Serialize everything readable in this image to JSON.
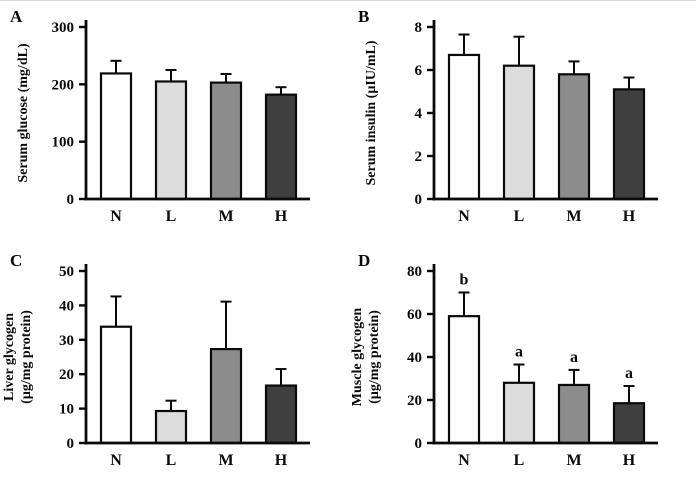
{
  "figure": {
    "description": "Four-panel bar chart figure, panels A-D, groups N L M H",
    "background": "#ffffff"
  },
  "colors": {
    "bar_fills": [
      "#ffffff",
      "#dcdcdc",
      "#8c8c8c",
      "#3f3f3f"
    ],
    "bar_stroke": "#0a0a0a",
    "axis": "#0a0a0a",
    "text": "#0a0a0a"
  },
  "chart_data": [
    {
      "type": "bar",
      "panel_label": "A",
      "ylabel_lines": [
        "Serum glucose (mg/dL)"
      ],
      "categories": [
        "N",
        "L",
        "M",
        "H"
      ],
      "values": [
        219,
        205,
        203,
        182
      ],
      "errors_upper": [
        22,
        20,
        15,
        13
      ],
      "bar_letters": [
        "",
        "",
        "",
        ""
      ],
      "ylim": [
        0,
        300
      ],
      "yticks": [
        0,
        100,
        200,
        300
      ],
      "grid": false,
      "legend": "none"
    },
    {
      "type": "bar",
      "panel_label": "B",
      "ylabel_lines": [
        "Serum insulin (µIU/mL)"
      ],
      "categories": [
        "N",
        "L",
        "M",
        "H"
      ],
      "values": [
        6.7,
        6.2,
        5.8,
        5.1
      ],
      "errors_upper": [
        0.95,
        1.35,
        0.6,
        0.55
      ],
      "bar_letters": [
        "",
        "",
        "",
        ""
      ],
      "ylim": [
        0,
        8
      ],
      "yticks": [
        0,
        2,
        4,
        6,
        8
      ],
      "grid": false,
      "legend": "none"
    },
    {
      "type": "bar",
      "panel_label": "C",
      "ylabel_lines": [
        "Liver glycogen",
        "(µg/mg protein)"
      ],
      "categories": [
        "N",
        "L",
        "M",
        "H"
      ],
      "values": [
        33.8,
        9.3,
        27.3,
        16.7
      ],
      "errors_upper": [
        8.8,
        3.0,
        13.8,
        4.8
      ],
      "bar_letters": [
        "",
        "",
        "",
        ""
      ],
      "ylim": [
        0,
        50
      ],
      "yticks": [
        0,
        10,
        20,
        30,
        40,
        50
      ],
      "grid": false,
      "legend": "none"
    },
    {
      "type": "bar",
      "panel_label": "D",
      "ylabel_lines": [
        "Muscle glycogen",
        "(µg/mg protein)"
      ],
      "categories": [
        "N",
        "L",
        "M",
        "H"
      ],
      "values": [
        59,
        28,
        27,
        18.5
      ],
      "errors_upper": [
        11,
        8.5,
        7,
        8
      ],
      "bar_letters": [
        "b",
        "a",
        "a",
        "a"
      ],
      "ylim": [
        0,
        80
      ],
      "yticks": [
        0,
        20,
        40,
        60,
        80
      ],
      "grid": false,
      "legend": "none"
    }
  ]
}
